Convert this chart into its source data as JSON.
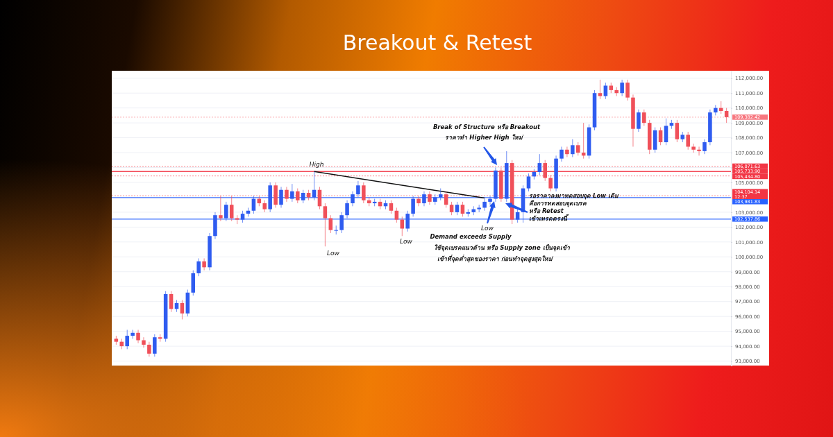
{
  "chart_data": {
    "type": "candlestick",
    "title": "Breakout & Retest",
    "categories": [
      null,
      null,
      null,
      null,
      null,
      null,
      null,
      null,
      null,
      null,
      null,
      null,
      null,
      null,
      null,
      null,
      null,
      null,
      null,
      null,
      null,
      null,
      null,
      null,
      null,
      null,
      null,
      null,
      null,
      null,
      null,
      null,
      null,
      null,
      null,
      null,
      null,
      null,
      null,
      null,
      null,
      null,
      null,
      null,
      null,
      null,
      null,
      null,
      null,
      null,
      null,
      null,
      null,
      null,
      null,
      null,
      null,
      null,
      null,
      null,
      null,
      null,
      null,
      null,
      null,
      null,
      null,
      null,
      null,
      null,
      null,
      null,
      null,
      null,
      null,
      null,
      null,
      null,
      null,
      null,
      null,
      null,
      null,
      null,
      null,
      null,
      null,
      null,
      null,
      null,
      null,
      null,
      null,
      null,
      null,
      null,
      null,
      null,
      null,
      null,
      null,
      null,
      null,
      null,
      null,
      null,
      null,
      null,
      null,
      null,
      null,
      null
    ],
    "ohlc": [
      [
        94500,
        94700,
        94100,
        94300
      ],
      [
        94300,
        94500,
        93800,
        94000
      ],
      [
        94000,
        95100,
        93800,
        94700
      ],
      [
        94700,
        95100,
        94500,
        94900
      ],
      [
        94900,
        95100,
        94200,
        94400
      ],
      [
        94400,
        94600,
        93900,
        94100
      ],
      [
        94100,
        94300,
        93300,
        93500
      ],
      [
        93500,
        94800,
        93300,
        94600
      ],
      [
        94600,
        94800,
        94300,
        94500
      ],
      [
        94500,
        97700,
        94300,
        97500
      ],
      [
        97500,
        97700,
        96300,
        96500
      ],
      [
        96500,
        97100,
        96300,
        96900
      ],
      [
        96900,
        97100,
        95800,
        96200
      ],
      [
        96200,
        97800,
        96000,
        97600
      ],
      [
        97600,
        99100,
        97400,
        98900
      ],
      [
        98900,
        99900,
        98700,
        99700
      ],
      [
        99700,
        99900,
        99100,
        99300
      ],
      [
        99300,
        101600,
        99100,
        101400
      ],
      [
        101400,
        103000,
        101200,
        102800
      ],
      [
        102800,
        104100,
        102400,
        102600
      ],
      [
        102600,
        103700,
        102400,
        103500
      ],
      [
        103500,
        104100,
        102400,
        102600
      ],
      [
        102600,
        102800,
        102200,
        102500
      ],
      [
        102500,
        103100,
        102300,
        102900
      ],
      [
        102900,
        103300,
        102700,
        103100
      ],
      [
        103100,
        104100,
        102900,
        103900
      ],
      [
        103900,
        104100,
        103400,
        103600
      ],
      [
        103600,
        103800,
        103000,
        103200
      ],
      [
        103200,
        105000,
        103000,
        104800
      ],
      [
        104800,
        105000,
        103300,
        103500
      ],
      [
        103500,
        104700,
        103300,
        104500
      ],
      [
        104500,
        104700,
        103700,
        103900
      ],
      [
        103900,
        104900,
        103700,
        104400
      ],
      [
        104400,
        104600,
        103600,
        103800
      ],
      [
        103800,
        104500,
        103600,
        104300
      ],
      [
        104300,
        104500,
        103800,
        104000
      ],
      [
        104000,
        105730,
        103800,
        104500
      ],
      [
        104500,
        104700,
        103200,
        103400
      ],
      [
        103400,
        103600,
        100700,
        102600
      ],
      [
        102600,
        102800,
        101600,
        101800
      ],
      [
        101800,
        102100,
        101500,
        101800
      ],
      [
        101800,
        103000,
        101600,
        102800
      ],
      [
        102800,
        103800,
        102600,
        103600
      ],
      [
        103600,
        104400,
        103400,
        104200
      ],
      [
        104200,
        105100,
        104000,
        104800
      ],
      [
        104800,
        105000,
        103600,
        103800
      ],
      [
        103800,
        104000,
        103400,
        103600
      ],
      [
        103600,
        103900,
        103400,
        103700
      ],
      [
        103700,
        103900,
        103200,
        103400
      ],
      [
        103400,
        103800,
        103200,
        103600
      ],
      [
        103600,
        103800,
        102900,
        103100
      ],
      [
        103100,
        103300,
        102300,
        102500
      ],
      [
        102500,
        102700,
        101400,
        101900
      ],
      [
        101900,
        103100,
        101700,
        102900
      ],
      [
        102900,
        104100,
        102700,
        103900
      ],
      [
        103900,
        104100,
        103400,
        103600
      ],
      [
        103600,
        104400,
        103400,
        104200
      ],
      [
        104200,
        104400,
        103500,
        103700
      ],
      [
        103700,
        104200,
        103500,
        104000
      ],
      [
        104000,
        104600,
        103800,
        104200
      ],
      [
        104200,
        104400,
        103300,
        103500
      ],
      [
        103500,
        103700,
        102800,
        103000
      ],
      [
        103000,
        103700,
        102800,
        103500
      ],
      [
        103500,
        103700,
        102700,
        102900
      ],
      [
        102900,
        103200,
        102700,
        103000
      ],
      [
        103000,
        103400,
        102800,
        103200
      ],
      [
        103200,
        103500,
        103000,
        103300
      ],
      [
        103300,
        103900,
        103100,
        103700
      ],
      [
        103700,
        104100,
        103500,
        103900
      ],
      [
        103900,
        106000,
        103700,
        105800
      ],
      [
        105800,
        106000,
        103700,
        103900
      ],
      [
        103900,
        107100,
        103700,
        106300
      ],
      [
        106300,
        106500,
        102200,
        102500
      ],
      [
        102500,
        103200,
        102300,
        103000
      ],
      [
        103000,
        104800,
        102300,
        104600
      ],
      [
        104600,
        105600,
        104400,
        105400
      ],
      [
        105400,
        105900,
        105200,
        105700
      ],
      [
        105700,
        106900,
        105500,
        106300
      ],
      [
        106300,
        106500,
        105100,
        105300
      ],
      [
        105300,
        105500,
        104400,
        104600
      ],
      [
        104600,
        106800,
        104400,
        106600
      ],
      [
        106600,
        107400,
        106400,
        107200
      ],
      [
        107200,
        107400,
        106700,
        106900
      ],
      [
        106900,
        107900,
        106700,
        107500
      ],
      [
        107500,
        107700,
        106800,
        107000
      ],
      [
        107000,
        109000,
        106600,
        106800
      ],
      [
        106800,
        108900,
        106600,
        108700
      ],
      [
        108700,
        111200,
        108500,
        111000
      ],
      [
        111000,
        111900,
        110600,
        110800
      ],
      [
        110800,
        111700,
        110600,
        111500
      ],
      [
        111500,
        111700,
        111000,
        111200
      ],
      [
        111200,
        111400,
        110800,
        111000
      ],
      [
        111000,
        111900,
        110800,
        111700
      ],
      [
        111700,
        111900,
        110500,
        110700
      ],
      [
        110700,
        110900,
        107400,
        108600
      ],
      [
        108600,
        109900,
        108400,
        109700
      ],
      [
        109700,
        109900,
        108800,
        109000
      ],
      [
        109000,
        109200,
        106900,
        107200
      ],
      [
        107200,
        108700,
        107000,
        108500
      ],
      [
        108500,
        108700,
        107500,
        107700
      ],
      [
        107700,
        109300,
        107500,
        108800
      ],
      [
        108800,
        109200,
        108600,
        109000
      ],
      [
        109000,
        109200,
        107700,
        107900
      ],
      [
        107900,
        108400,
        107700,
        108200
      ],
      [
        108200,
        108400,
        107200,
        107400
      ],
      [
        107400,
        107600,
        107000,
        107200
      ],
      [
        107200,
        107400,
        106800,
        107100
      ],
      [
        107100,
        107900,
        106900,
        107700
      ],
      [
        107700,
        109900,
        107500,
        109700
      ],
      [
        109700,
        110200,
        109500,
        110000
      ],
      [
        110000,
        110450,
        109600,
        109800
      ],
      [
        109800,
        110000,
        109000,
        109382.42
      ]
    ],
    "series": [
      {
        "type": "line",
        "color": "#111111",
        "values": [
          null,
          null,
          null,
          null,
          null,
          null,
          null,
          null,
          null,
          null,
          null,
          null,
          null,
          null,
          null,
          null,
          null,
          null,
          null,
          null,
          null,
          null,
          null,
          null,
          null,
          null,
          null,
          null,
          null,
          null,
          null,
          null,
          null,
          null,
          null,
          null,
          105730,
          null,
          null,
          null,
          null,
          null,
          null,
          null,
          null,
          null,
          null,
          null,
          null,
          null,
          null,
          null,
          null,
          null,
          null,
          null,
          null,
          null,
          null,
          null,
          null,
          null,
          null,
          null,
          null,
          null,
          null,
          103950,
          null,
          null,
          null,
          null,
          null,
          null,
          null,
          null,
          null,
          null,
          null,
          null,
          null,
          null,
          null,
          null,
          null,
          null,
          null,
          null,
          null,
          null,
          null,
          null,
          null,
          null,
          null,
          null,
          null,
          null,
          null,
          null,
          null,
          null,
          null,
          null,
          null,
          null,
          null,
          null,
          null,
          null,
          null,
          null
        ]
      }
    ],
    "ylim": [
      92700,
      112500
    ],
    "yticks": [
      {
        "value": 93000,
        "label": "93,000.00"
      },
      {
        "value": 94000,
        "label": "94,000.00"
      },
      {
        "value": 95000,
        "label": "95,000.00"
      },
      {
        "value": 96000,
        "label": "96,000.00"
      },
      {
        "value": 97000,
        "label": "97,000.00"
      },
      {
        "value": 98000,
        "label": "98,000.00"
      },
      {
        "value": 99000,
        "label": "99,000.00"
      },
      {
        "value": 100000,
        "label": "100,000.00"
      },
      {
        "value": 101000,
        "label": "101,000.00"
      },
      {
        "value": 102000,
        "label": "102,000.00"
      },
      {
        "value": 103000,
        "label": "103,000.00"
      },
      {
        "value": 104000,
        "label": null
      },
      {
        "value": 105000,
        "label": "105,000.00"
      },
      {
        "value": 106000,
        "label": null
      },
      {
        "value": 107000,
        "label": "107,000.00"
      },
      {
        "value": 108000,
        "label": "108,000.00"
      },
      {
        "value": 109000,
        "label": "109,000.00"
      },
      {
        "value": 110000,
        "label": "110,000.00"
      },
      {
        "value": 111000,
        "label": "111,000.00"
      },
      {
        "value": 112000,
        "label": "112,000.00"
      }
    ],
    "grid": "y",
    "ref_lines": [
      {
        "axis": "y",
        "value": 106071.63,
        "label": "106,071.63",
        "color": "#f23645",
        "line_style": "dotted"
      },
      {
        "axis": "y",
        "value": 105733.9,
        "label": "105,733.90",
        "color": "#f23645",
        "line_style": "solid"
      },
      {
        "axis": "y",
        "value": 105434.8,
        "label": "105,434.80",
        "color": "#f23645",
        "line_style": "dotted"
      },
      {
        "axis": "y",
        "value": 104104.14,
        "label": "104,104.14\n12:37",
        "color": "#f23645",
        "line_style": "dotted"
      },
      {
        "axis": "y",
        "value": 103981.83,
        "label": "103,981.83",
        "color": "#2962ff",
        "line_style": "solid"
      },
      {
        "axis": "y",
        "value": 102537.86,
        "label": "102,537.86",
        "color": "#2962ff",
        "line_style": "solid"
      },
      {
        "axis": "y",
        "value": 109382.42,
        "label": "109,382.42",
        "color": "#f7777f",
        "line_style": "dotted"
      }
    ],
    "annotations": [
      "High",
      "Low",
      "Low",
      "Low",
      "Break of Structure หรือ Breakout",
      "ราคาทำ Higher High ใหม่",
      "Demand exceeds Supply",
      "ใช้จุดเบรคแนวต้าน หรือ Supply zone เป็นจุดเข้า",
      "เข้าที่จุดต่ำสุดของราคา ก่อนทำจุดสูงสุดใหม่",
      "รอราคาลงมาทดสอบจุด Low เดิม",
      "คือการทดสอบจุดเบรค",
      "หรือ Retest",
      "เข้าเทรดตรงนี้"
    ]
  }
}
